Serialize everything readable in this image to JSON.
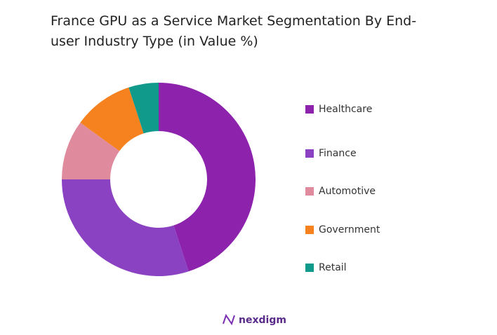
{
  "chart_data": {
    "type": "donut",
    "title": "France GPU as a Service Market Segmentation By End-user Industry Type (in Value %)",
    "categories": [
      "Healthcare",
      "Finance",
      "Automotive",
      "Government",
      "Retail"
    ],
    "values": [
      45,
      30,
      10,
      10,
      5
    ],
    "colors": [
      "#8d22ad",
      "#8a42c2",
      "#e08a9e",
      "#f5811f",
      "#0f9a8c"
    ],
    "legend": "right"
  },
  "footer": {
    "brand": "nexdigm"
  }
}
